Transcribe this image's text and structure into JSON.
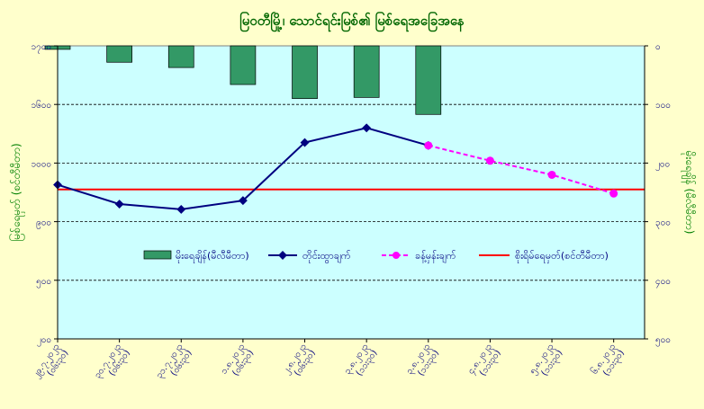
{
  "chart_data": {
    "type": "line",
    "title": "မြဝတီမြို့၊ သောင်ရင်းမြစ်၏ မြစ်ရေအခြေအနေ",
    "ylabel_left": "မြစ်ရေမှတ် (စင်တီမီတာ)",
    "ylabel_right": "မိုးရေချိန် (မီလီမီတာ)",
    "y_left_ticks": [
      "၁၇၀၀",
      "၁၆၀၀",
      "၁၀၀၀",
      "၉၀၀",
      "၅၀၀",
      "၂၀၀"
    ],
    "y_right_ticks": [
      "၀",
      "၁၀၀",
      "၂၀၀",
      "၃၀၀",
      "၄၀၀",
      "၅၀၀"
    ],
    "x_labels": [
      [
        "၂၉.၇.၂၀၂၃",
        "(၀၆း၃၀)"
      ],
      [
        "၃၀.၇.၂၀၂၃",
        "(၀၆း၃၀)"
      ],
      [
        "၃၁.၇.၂၀၂၃",
        "(၀၆း၃၀)"
      ],
      [
        "၁.၈.၂၀၂၃",
        "(၀၆း၃၀)"
      ],
      [
        "၂.၈.၂၀၂၃",
        "(၀၆း၃၀)"
      ],
      [
        "၃.၈.၂၀၂၃",
        "(၁၁း၃၀)"
      ],
      [
        "၃.၈.၂၀၂၃",
        "(၁၁း၃၀)"
      ],
      [
        "၄.၈.၂၀၂၃",
        "(၁၁း၃၀)"
      ],
      [
        "၅.၈.၂၀၂၃",
        "(၁၁း၃၀)"
      ],
      [
        "၆.၈.၂၀၂၃",
        "(၁၁း၃၀)"
      ]
    ],
    "y_range": [
      0,
      5
    ],
    "rainfall_range": [
      0,
      500
    ],
    "series": [
      {
        "name": "မိုးရေချိန်(မီလီမီတာ)",
        "type": "bar",
        "color": "#339966",
        "values": [
          6,
          28,
          37,
          66,
          90,
          88,
          117
        ]
      },
      {
        "name": "တိုင်းထွာချက်",
        "type": "line",
        "color": "#000080",
        "values": [
          2.63,
          2.3,
          2.21,
          2.36,
          3.35,
          3.6,
          3.3
        ]
      },
      {
        "name": "ခန့်မှန်းချက်",
        "type": "line-dashed",
        "color": "#ff00ff",
        "x_start": 6,
        "values": [
          3.3,
          3.04,
          2.8,
          2.48
        ]
      },
      {
        "name": "စိုးရိမ်ရေမှတ်(စင်တီမီတာ)",
        "type": "hline",
        "color": "#ff0000",
        "value": 2.55
      }
    ]
  }
}
